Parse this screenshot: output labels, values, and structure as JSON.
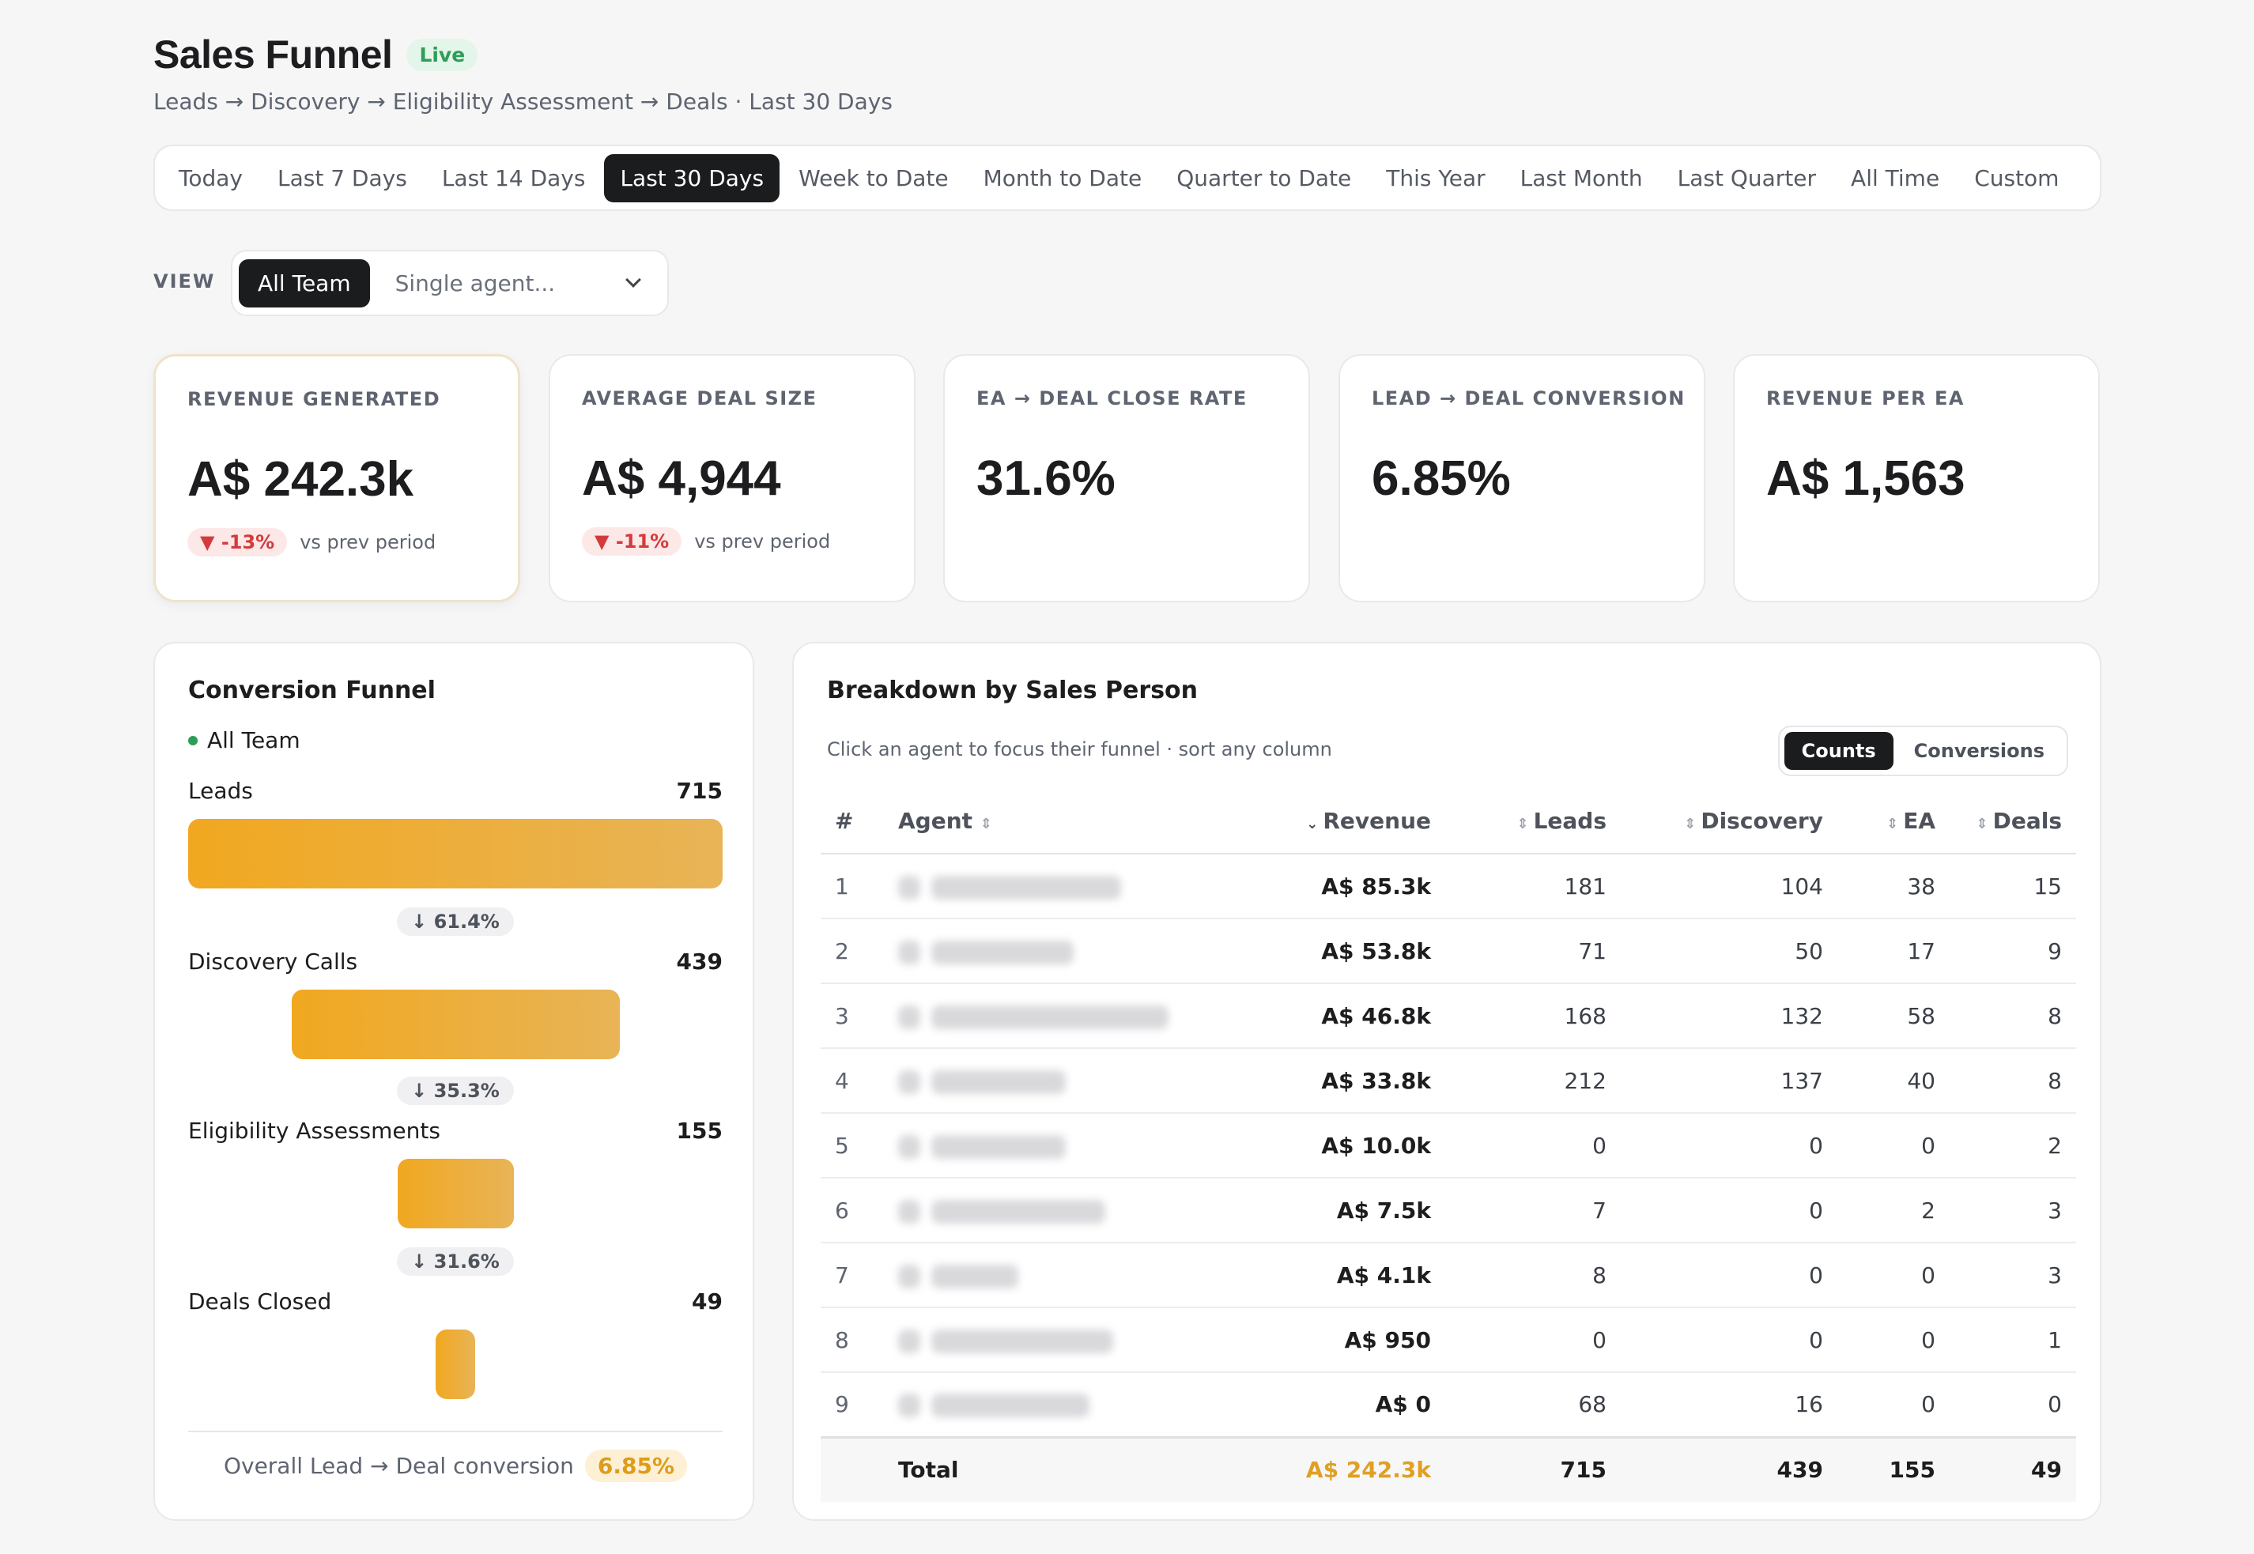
{
  "header": {
    "title": "Sales Funnel",
    "live_badge": "Live",
    "subtitle": "Leads → Discovery → Eligibility Assessment → Deals · Last 30 Days"
  },
  "date_ranges": [
    "Today",
    "Last 7 Days",
    "Last 14 Days",
    "Last 30 Days",
    "Week to Date",
    "Month to Date",
    "Quarter to Date",
    "This Year",
    "Last Month",
    "Last Quarter",
    "All Time",
    "Custom"
  ],
  "selected_range": "Last 30 Days",
  "view": {
    "label": "VIEW",
    "team_button": "All Team",
    "agent_placeholder": "Single agent..."
  },
  "kpis": [
    {
      "label": "REVENUE GENERATED",
      "value": "A$ 242.3k",
      "delta": "▼ -13%",
      "delta_note": "vs prev period"
    },
    {
      "label": "AVERAGE DEAL SIZE",
      "value": "A$ 4,944",
      "delta": "▼ -11%",
      "delta_note": "vs prev period"
    },
    {
      "label": "EA → DEAL CLOSE RATE",
      "value": "31.6%"
    },
    {
      "label": "LEAD → DEAL CONVERSION",
      "value": "6.85%"
    },
    {
      "label": "REVENUE PER EA",
      "value": "A$ 1,563"
    }
  ],
  "funnel": {
    "title": "Conversion Funnel",
    "legend": "All Team",
    "stages": [
      {
        "name": "Leads",
        "value": "715",
        "count": 715
      },
      {
        "name": "Discovery Calls",
        "value": "439",
        "count": 439
      },
      {
        "name": "Eligibility Assessments",
        "value": "155",
        "count": 155
      },
      {
        "name": "Deals Closed",
        "value": "49",
        "count": 49
      }
    ],
    "drops": [
      "↓ 61.4%",
      "↓ 35.3%",
      "↓ 31.6%"
    ],
    "overall_label": "Overall Lead → Deal conversion",
    "overall_value": "6.85%"
  },
  "breakdown": {
    "title": "Breakdown by Sales Person",
    "hint": "Click an agent to focus their funnel · sort any column",
    "toggle": [
      "Counts",
      "Conversions"
    ],
    "toggle_active": "Counts",
    "columns": {
      "num": "#",
      "agent": "Agent",
      "revenue": "Revenue",
      "leads": "Leads",
      "discovery": "Discovery",
      "ea": "EA",
      "deals": "Deals"
    },
    "rows": [
      {
        "num": "1",
        "revenue": "A$ 85.3k",
        "leads": "181",
        "discovery": "104",
        "ea": "38",
        "deals": "15"
      },
      {
        "num": "2",
        "revenue": "A$ 53.8k",
        "leads": "71",
        "discovery": "50",
        "ea": "17",
        "deals": "9"
      },
      {
        "num": "3",
        "revenue": "A$ 46.8k",
        "leads": "168",
        "discovery": "132",
        "ea": "58",
        "deals": "8"
      },
      {
        "num": "4",
        "revenue": "A$ 33.8k",
        "leads": "212",
        "discovery": "137",
        "ea": "40",
        "deals": "8"
      },
      {
        "num": "5",
        "revenue": "A$ 10.0k",
        "leads": "0",
        "discovery": "0",
        "ea": "0",
        "deals": "2"
      },
      {
        "num": "6",
        "revenue": "A$ 7.5k",
        "leads": "7",
        "discovery": "0",
        "ea": "2",
        "deals": "3"
      },
      {
        "num": "7",
        "revenue": "A$ 4.1k",
        "leads": "8",
        "discovery": "0",
        "ea": "0",
        "deals": "3"
      },
      {
        "num": "8",
        "revenue": "A$ 950",
        "leads": "0",
        "discovery": "0",
        "ea": "0",
        "deals": "1"
      },
      {
        "num": "9",
        "revenue": "A$ 0",
        "leads": "68",
        "discovery": "16",
        "ea": "0",
        "deals": "0"
      }
    ],
    "total": {
      "label": "Total",
      "revenue": "A$ 242.3k",
      "leads": "715",
      "discovery": "439",
      "ea": "155",
      "deals": "49"
    }
  },
  "colors": {
    "accent": "#f1a820",
    "negative": "#d33b3b",
    "live": "#2e9d57",
    "dark": "#1b1c1e"
  }
}
